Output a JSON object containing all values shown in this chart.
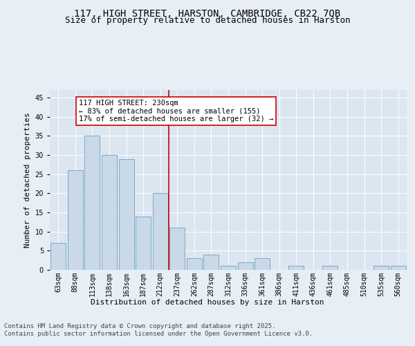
{
  "title1": "117, HIGH STREET, HARSTON, CAMBRIDGE, CB22 7QB",
  "title2": "Size of property relative to detached houses in Harston",
  "xlabel": "Distribution of detached houses by size in Harston",
  "ylabel": "Number of detached properties",
  "categories": [
    "63sqm",
    "88sqm",
    "113sqm",
    "138sqm",
    "163sqm",
    "187sqm",
    "212sqm",
    "237sqm",
    "262sqm",
    "287sqm",
    "312sqm",
    "336sqm",
    "361sqm",
    "386sqm",
    "411sqm",
    "436sqm",
    "461sqm",
    "485sqm",
    "510sqm",
    "535sqm",
    "560sqm"
  ],
  "values": [
    7,
    26,
    35,
    30,
    29,
    14,
    20,
    11,
    3,
    4,
    1,
    2,
    3,
    0,
    1,
    0,
    1,
    0,
    0,
    1,
    1
  ],
  "bar_color": "#c9d9e8",
  "bar_edge_color": "#7aaac8",
  "vline_color": "#cc0000",
  "annotation_text": "117 HIGH STREET: 230sqm\n← 83% of detached houses are smaller (155)\n17% of semi-detached houses are larger (32) →",
  "annotation_box_color": "#ffffff",
  "annotation_box_edge_color": "#cc0000",
  "ylim": [
    0,
    47
  ],
  "yticks": [
    0,
    5,
    10,
    15,
    20,
    25,
    30,
    35,
    40,
    45
  ],
  "bg_color": "#e8eef5",
  "plot_bg_color": "#dce6f0",
  "footer_text": "Contains HM Land Registry data © Crown copyright and database right 2025.\nContains public sector information licensed under the Open Government Licence v3.0.",
  "title1_fontsize": 10,
  "title2_fontsize": 9,
  "axis_label_fontsize": 8,
  "tick_fontsize": 7,
  "annotation_fontsize": 7.5,
  "footer_fontsize": 6.5
}
